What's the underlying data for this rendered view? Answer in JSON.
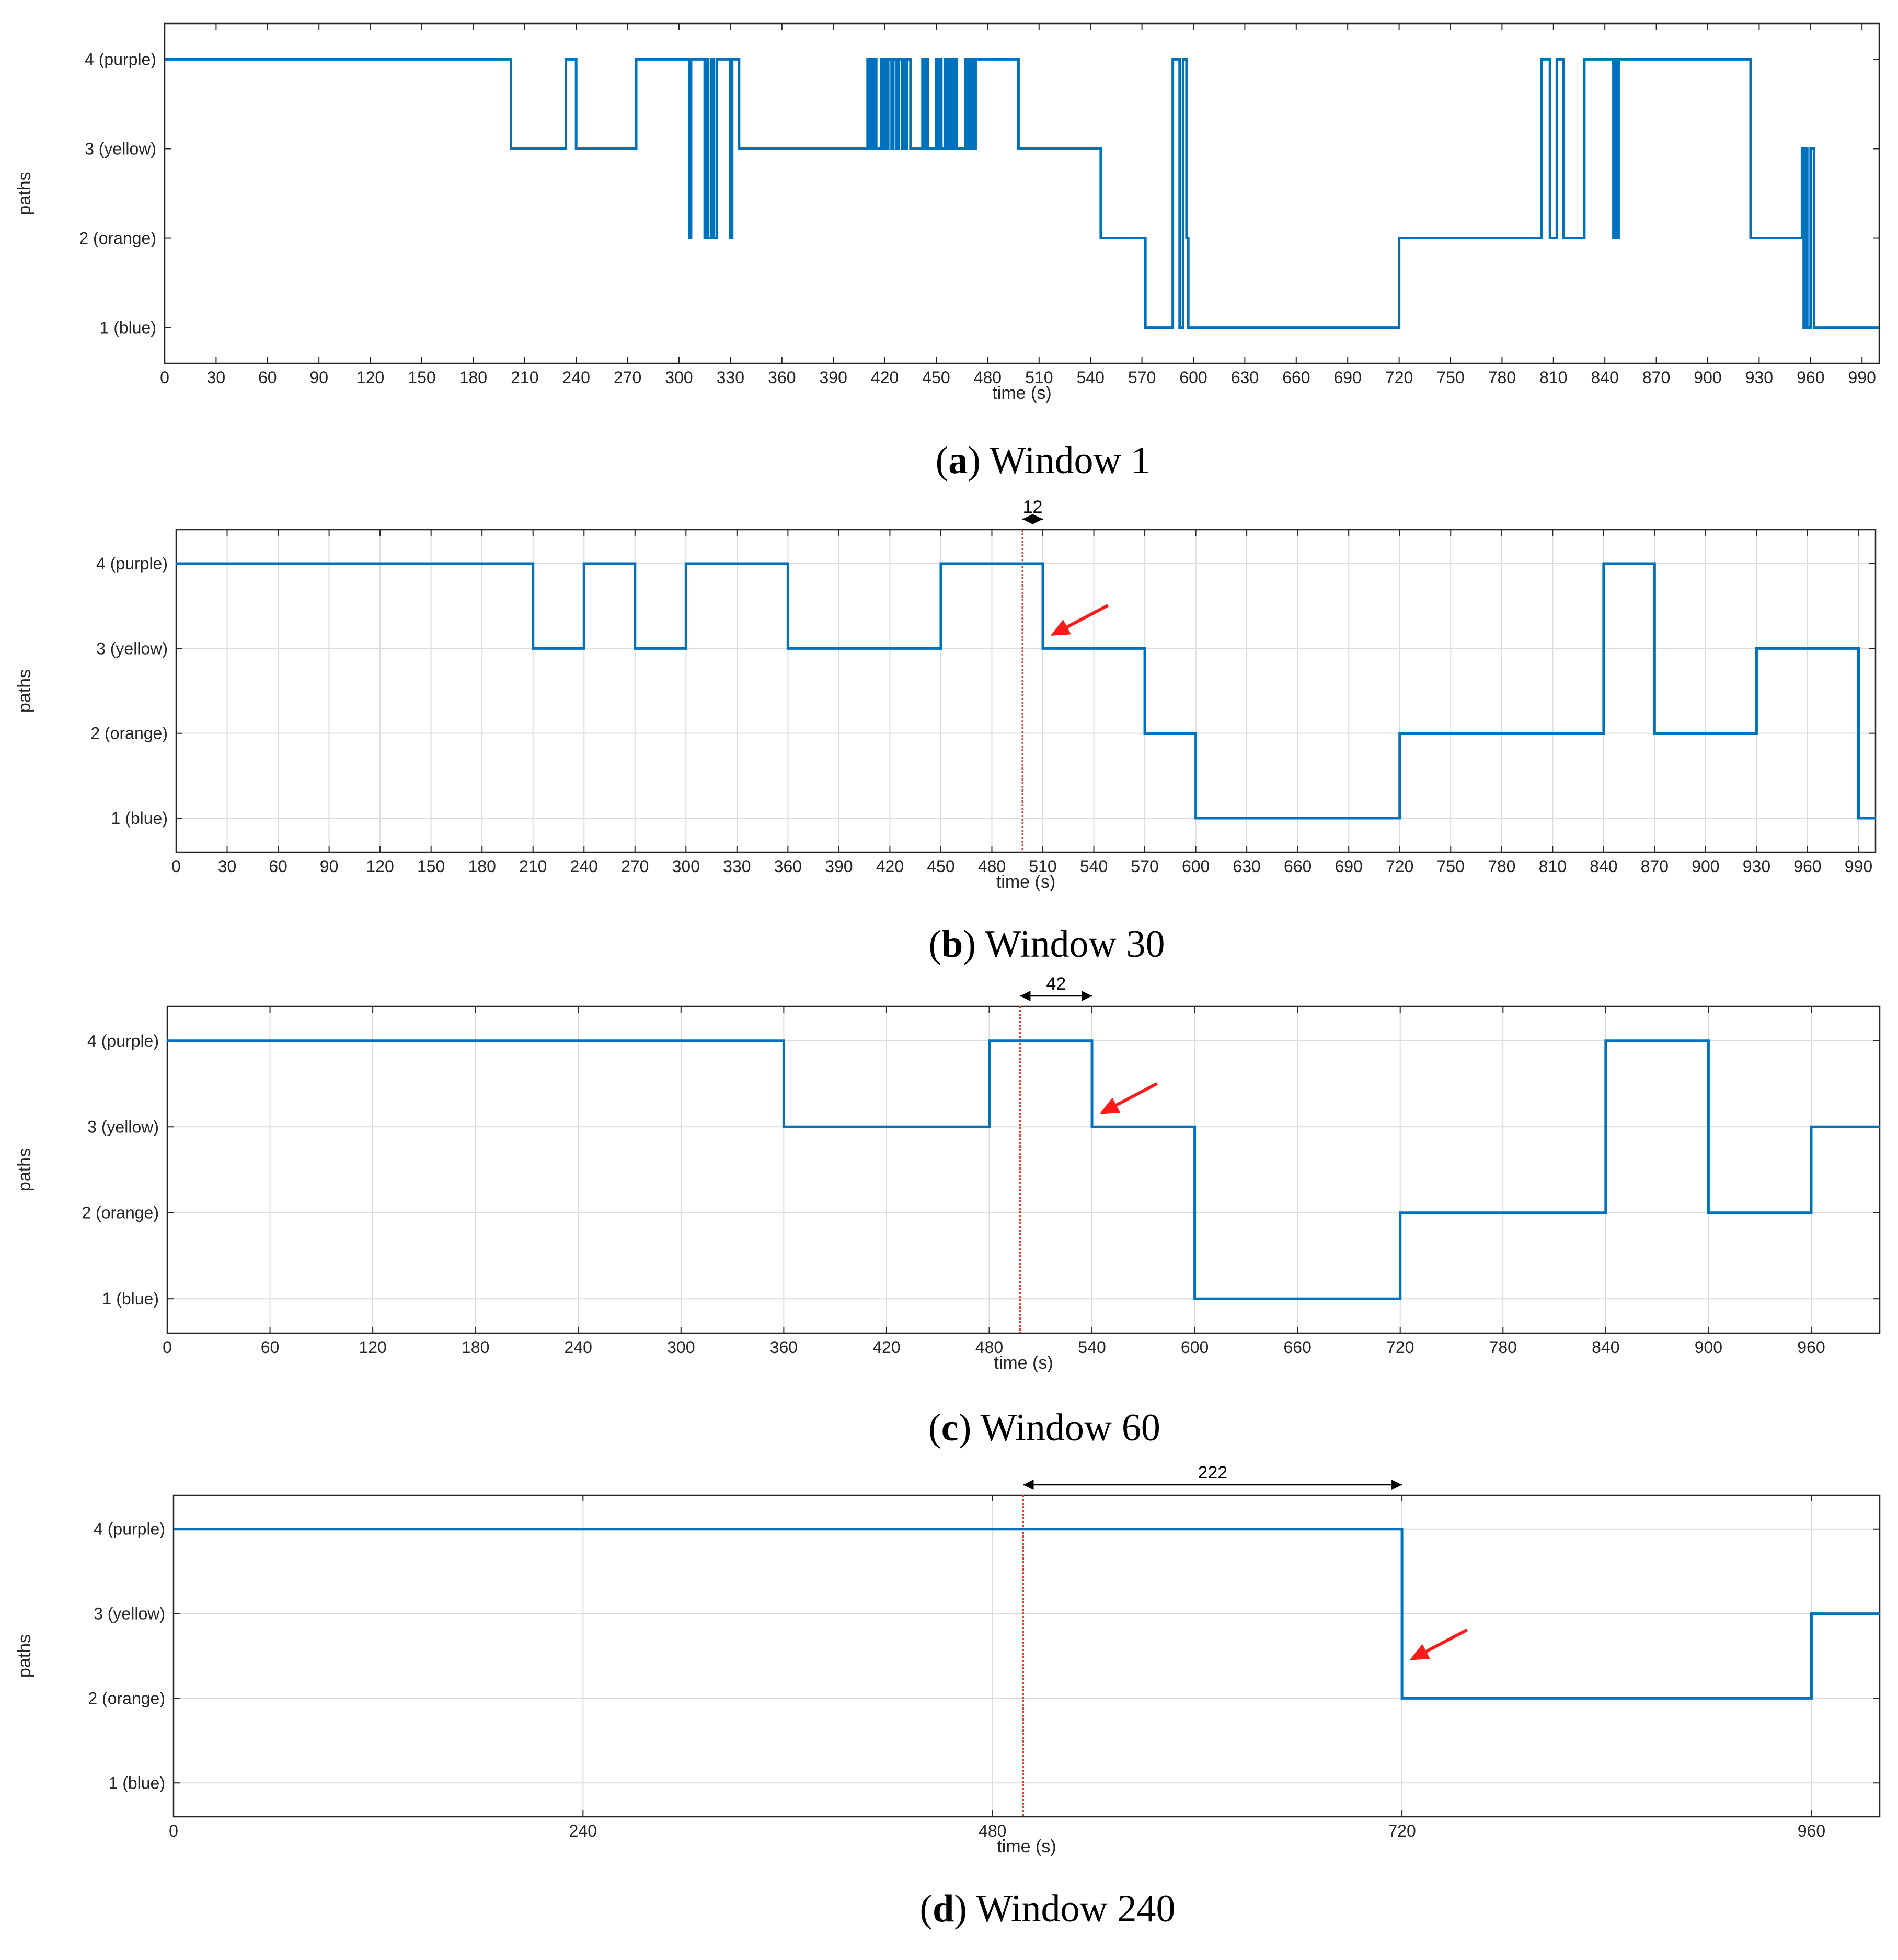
{
  "figure": {
    "colors": {
      "line": "#0072BD",
      "marker": "#e8382c",
      "arrow": "#ff1a1a",
      "grid": "#dcdcdc",
      "axes": "#262626"
    }
  },
  "chart_data": [
    {
      "type": "line",
      "panel_label": "a",
      "caption": "Window 1",
      "xlabel": "time (s)",
      "ylabel": "paths",
      "xlim": [
        0,
        1000
      ],
      "ylim": [
        0.6,
        4.4
      ],
      "xticks": [
        0,
        30,
        60,
        90,
        120,
        150,
        180,
        210,
        240,
        270,
        300,
        330,
        360,
        390,
        420,
        450,
        480,
        510,
        540,
        570,
        600,
        630,
        660,
        690,
        720,
        750,
        780,
        810,
        840,
        870,
        900,
        930,
        960,
        990
      ],
      "yticks": [
        1,
        2,
        3,
        4
      ],
      "yticklabels": [
        "1 (blue)",
        "2 (orange)",
        "3 (yellow)",
        "4 (purple)"
      ],
      "grid": false,
      "series": [
        {
          "name": "paths",
          "x": [
            0,
            202,
            234,
            240,
            275,
            306,
            307,
            308,
            315,
            316,
            317,
            319,
            320,
            322,
            330,
            331,
            332,
            335,
            410,
            411,
            412,
            413,
            414,
            415,
            418,
            419,
            420,
            421,
            422,
            424,
            425,
            427,
            428,
            430,
            431,
            432,
            433,
            435,
            442,
            443,
            444,
            445,
            450,
            451,
            452,
            453,
            455,
            456,
            457,
            458,
            459,
            460,
            461,
            462,
            467,
            468,
            469,
            470,
            471,
            472,
            473,
            475,
            498,
            546,
            572,
            588,
            592,
            594,
            596,
            597,
            598,
            720,
            803,
            808,
            812,
            816,
            828,
            845,
            846,
            847,
            848,
            925,
            955,
            956,
            957,
            958,
            960,
            962,
            1000
          ],
          "y": [
            4,
            3,
            4,
            3,
            4,
            2,
            4,
            4,
            2,
            4,
            2,
            4,
            2,
            4,
            2,
            4,
            4,
            3,
            4,
            3,
            4,
            3,
            4,
            3,
            4,
            3,
            4,
            3,
            4,
            3,
            4,
            3,
            4,
            3,
            4,
            3,
            4,
            3,
            4,
            3,
            4,
            3,
            4,
            3,
            4,
            3,
            4,
            3,
            4,
            3,
            4,
            3,
            4,
            3,
            4,
            3,
            4,
            3,
            4,
            3,
            4,
            4,
            3,
            2,
            1,
            4,
            1,
            4,
            2,
            1,
            1,
            2,
            4,
            2,
            4,
            2,
            4,
            2,
            4,
            2,
            4,
            2,
            3,
            1,
            3,
            1,
            3,
            1,
            1
          ]
        }
      ]
    },
    {
      "type": "line",
      "panel_label": "b",
      "caption": "Window 30",
      "xlabel": "time (s)",
      "ylabel": "paths",
      "xlim": [
        0,
        1000
      ],
      "ylim": [
        0.6,
        4.4
      ],
      "xticks": [
        0,
        30,
        60,
        90,
        120,
        150,
        180,
        210,
        240,
        270,
        300,
        330,
        360,
        390,
        420,
        450,
        480,
        510,
        540,
        570,
        600,
        630,
        660,
        690,
        720,
        750,
        780,
        810,
        840,
        870,
        900,
        930,
        960,
        990
      ],
      "yticks": [
        1,
        2,
        3,
        4
      ],
      "yticklabels": [
        "1 (blue)",
        "2 (orange)",
        "3 (yellow)",
        "4 (purple)"
      ],
      "grid": true,
      "marker_x": 498,
      "annotation": {
        "text": "12",
        "from": 498,
        "to": 510
      },
      "arrow_target": [
        512,
        3.15
      ],
      "series": [
        {
          "name": "paths",
          "x": [
            0,
            210,
            240,
            270,
            300,
            360,
            450,
            510,
            570,
            600,
            720,
            840,
            870,
            930,
            990,
            1000
          ],
          "y": [
            4,
            3,
            4,
            3,
            4,
            3,
            4,
            3,
            2,
            1,
            2,
            4,
            2,
            3,
            1,
            1
          ]
        }
      ]
    },
    {
      "type": "line",
      "panel_label": "c",
      "caption": "Window 60",
      "xlabel": "time (s)",
      "ylabel": "paths",
      "xlim": [
        0,
        1000
      ],
      "ylim": [
        0.6,
        4.4
      ],
      "xticks": [
        0,
        60,
        120,
        180,
        240,
        300,
        360,
        420,
        480,
        540,
        600,
        660,
        720,
        780,
        840,
        900,
        960
      ],
      "yticks": [
        1,
        2,
        3,
        4
      ],
      "yticklabels": [
        "1 (blue)",
        "2 (orange)",
        "3 (yellow)",
        "4 (purple)"
      ],
      "grid": true,
      "marker_x": 498,
      "annotation": {
        "text": "42",
        "from": 498,
        "to": 540
      },
      "arrow_target": [
        542,
        3.15
      ],
      "series": [
        {
          "name": "paths",
          "x": [
            0,
            360,
            480,
            540,
            600,
            720,
            840,
            900,
            960,
            1000
          ],
          "y": [
            4,
            3,
            4,
            3,
            1,
            2,
            4,
            2,
            3,
            3
          ]
        }
      ]
    },
    {
      "type": "line",
      "panel_label": "d",
      "caption": "Window 240",
      "xlabel": "time (s)",
      "ylabel": "paths",
      "xlim": [
        0,
        1000
      ],
      "ylim": [
        0.6,
        4.4
      ],
      "xticks": [
        0,
        240,
        480,
        720,
        960
      ],
      "yticks": [
        1,
        2,
        3,
        4
      ],
      "yticklabels": [
        "1 (blue)",
        "2 (orange)",
        "3 (yellow)",
        "4 (purple)"
      ],
      "grid": true,
      "marker_x": 498,
      "annotation": {
        "text": "222",
        "from": 498,
        "to": 720
      },
      "arrow_target": [
        722,
        2.45
      ],
      "series": [
        {
          "name": "paths",
          "x": [
            0,
            720,
            960,
            1000
          ],
          "y": [
            4,
            2,
            3,
            3
          ]
        }
      ]
    }
  ]
}
